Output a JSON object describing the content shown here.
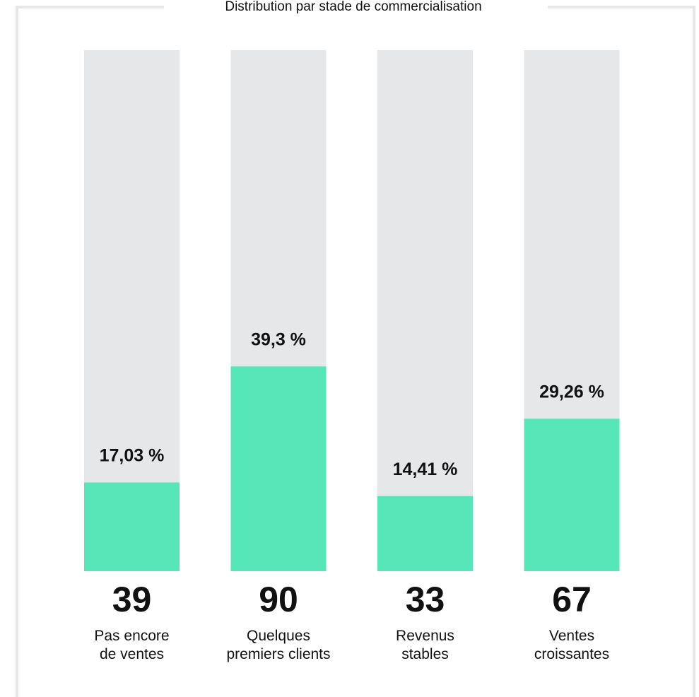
{
  "chart_data": {
    "type": "bar",
    "title": "Distribution par stade de commercialisation",
    "categories": [
      "Pas encore de ventes",
      "Quelques premiers clients",
      "Revenus stables",
      "Ventes croissantes"
    ],
    "category_lines": [
      [
        "Pas encore",
        "de ventes"
      ],
      [
        "Quelques",
        "premiers clients"
      ],
      [
        "Revenus",
        "stables"
      ],
      [
        "Ventes",
        "croissantes"
      ]
    ],
    "counts": [
      39,
      90,
      33,
      67
    ],
    "counts_label": [
      "39",
      "90",
      "33",
      "67"
    ],
    "values": [
      17.03,
      39.3,
      14.41,
      29.26
    ],
    "value_labels": [
      "17,03 %",
      "39,3 %",
      "14,41 %",
      "29,26 %"
    ],
    "ylim": [
      0,
      100
    ],
    "grid": false,
    "colors": {
      "fill": "#56e6b7",
      "track": "#e6e7e9",
      "frame": "#e6e7e9",
      "text": "#111111"
    }
  }
}
